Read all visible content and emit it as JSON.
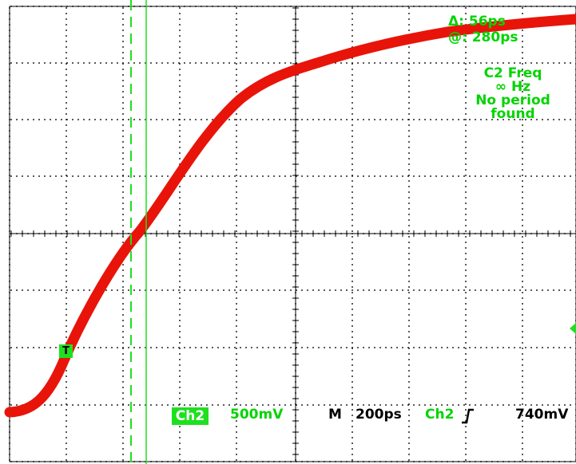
{
  "cursor_readout": {
    "delta": "Δ: 56ps",
    "at": "@: 280ps"
  },
  "measurement": {
    "line1": "C2 Freq",
    "line2": "∞ Hz",
    "line3": "No period",
    "line4": "found"
  },
  "status_bar": {
    "channel_badge": "Ch2",
    "volts_per_div": "500mV",
    "timebase_prefix": "M",
    "time_per_div": "200ps",
    "trigger_source": "Ch2",
    "trigger_slope_icon": "rising-edge-icon",
    "trigger_level": "740mV"
  },
  "trigger_marker": {
    "label": "T"
  },
  "colors": {
    "trace": "#e8140a",
    "cursor": "#22dd22",
    "grid": "#000000",
    "background": "#ffffff"
  }
}
